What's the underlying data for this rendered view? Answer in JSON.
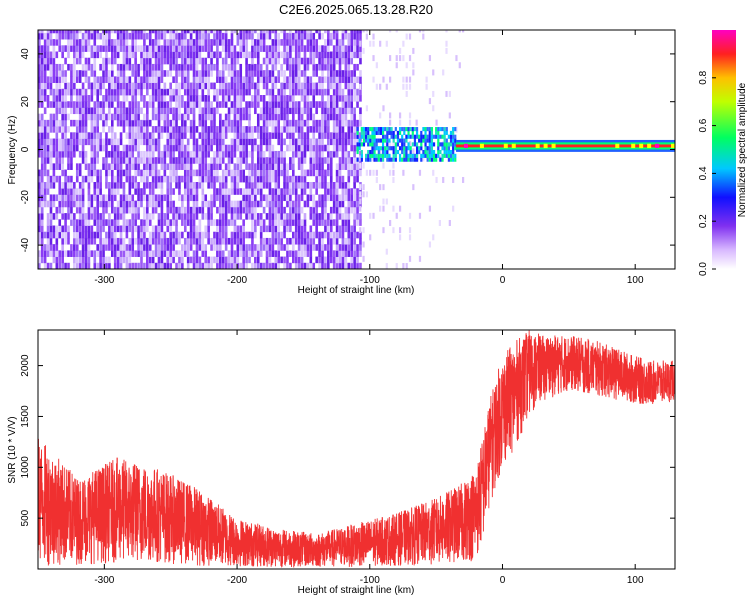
{
  "title": "C2E6.2025.065.13.28.R20",
  "chart_data": [
    {
      "type": "heatmap",
      "xlabel": "Height of straight line (km)",
      "ylabel": "Frequency (Hz)",
      "xlim": [
        -350,
        130
      ],
      "ylim": [
        -50,
        50
      ],
      "xticks": [
        -300,
        -200,
        -100,
        0,
        100
      ],
      "yticks": [
        -40,
        -20,
        0,
        20,
        40
      ],
      "colorbar": {
        "label": "Normalized spectral amplitude",
        "range": [
          0,
          1
        ],
        "ticks": [
          "0.0",
          "0.2",
          "0.4",
          "0.6",
          "0.8"
        ],
        "colors": [
          "#ffffff",
          "#b060ff",
          "#2020ff",
          "#00e0ff",
          "#00ff40",
          "#ffff00",
          "#ff2020",
          "#ff00c0"
        ]
      },
      "regions": [
        {
          "x": [
            -350,
            -110
          ],
          "freq": [
            -50,
            50
          ],
          "amplitude": 0.12,
          "description_color": "#7a30f0"
        },
        {
          "x": [
            -110,
            -35
          ],
          "freq": [
            -5,
            8
          ],
          "amplitude": 0.35
        },
        {
          "x": [
            -35,
            130
          ],
          "freq": [
            -1,
            4
          ],
          "amplitude": 0.9
        }
      ]
    },
    {
      "type": "line",
      "xlabel": "Height of straight line (km)",
      "ylabel": "SNR (10 * V/V)",
      "xlim": [
        -350,
        130
      ],
      "ylim": [
        0,
        2350
      ],
      "xticks": [
        -300,
        -200,
        -100,
        0,
        100
      ],
      "yticks": [
        500,
        1000,
        1500,
        2000
      ],
      "series": [
        {
          "color": "#f03030",
          "x": [
            -350,
            -320,
            -290,
            -260,
            -230,
            -200,
            -170,
            -140,
            -110,
            -80,
            -50,
            -30,
            -20,
            -15,
            -10,
            -5,
            0,
            10,
            20,
            30,
            50,
            70,
            90,
            110,
            130
          ],
          "low": [
            30,
            40,
            60,
            60,
            30,
            20,
            15,
            15,
            20,
            30,
            40,
            60,
            80,
            250,
            600,
            800,
            1000,
            1200,
            1500,
            1650,
            1750,
            1700,
            1650,
            1600,
            1650
          ],
          "high": [
            1300,
            900,
            1100,
            1000,
            800,
            500,
            400,
            350,
            450,
            550,
            700,
            850,
            1000,
            1300,
            1650,
            1900,
            2100,
            2250,
            2350,
            2300,
            2300,
            2250,
            2150,
            2050,
            2050
          ]
        }
      ]
    }
  ]
}
